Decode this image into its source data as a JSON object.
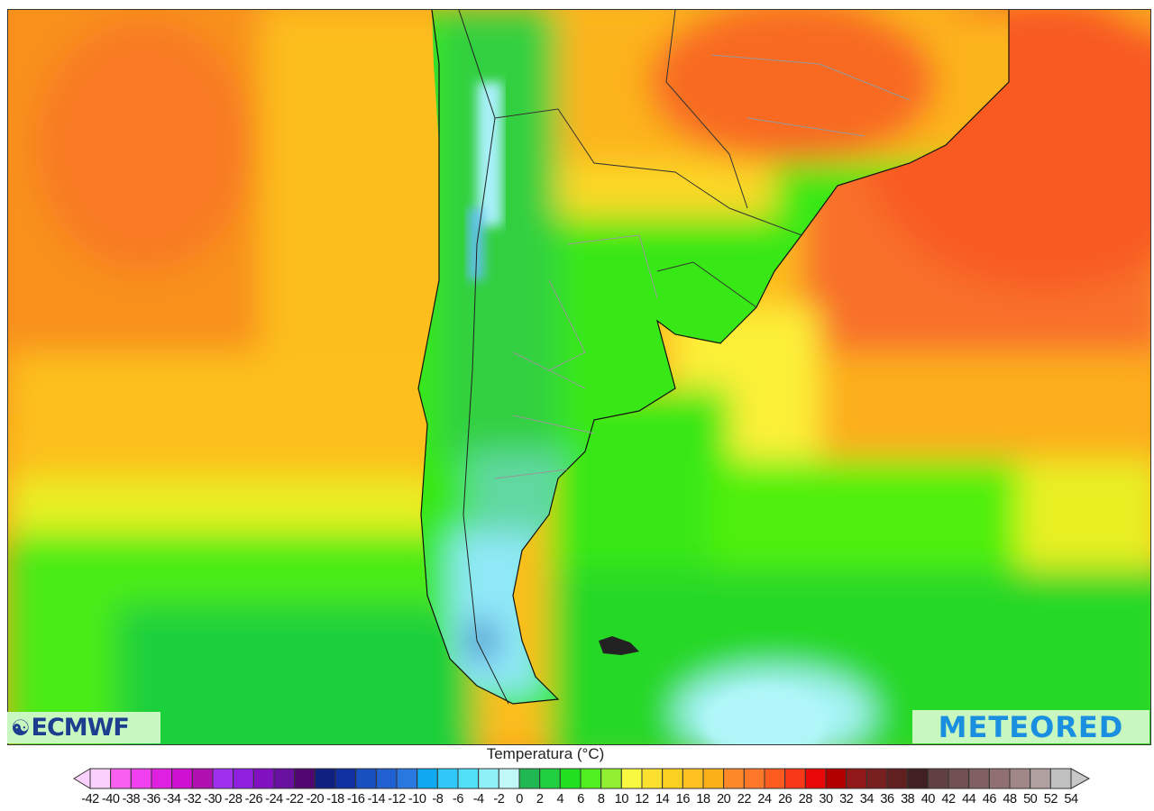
{
  "map": {
    "variable": "Temperatura (°C)",
    "region": "South America southern cone",
    "logos": {
      "left": "ECMWF",
      "right": "METEORED"
    }
  },
  "legend": {
    "title": "Temperatura (°C)",
    "labels": [
      "-42",
      "-40",
      "-38",
      "-36",
      "-34",
      "-32",
      "-30",
      "-28",
      "-26",
      "-24",
      "-22",
      "-20",
      "-18",
      "-16",
      "-14",
      "-12",
      "-10",
      "-8",
      "-6",
      "-4",
      "-2",
      "0",
      "2",
      "4",
      "6",
      "8",
      "10",
      "12",
      "14",
      "16",
      "18",
      "20",
      "22",
      "24",
      "26",
      "28",
      "30",
      "32",
      "34",
      "36",
      "38",
      "40",
      "42",
      "44",
      "46",
      "48",
      "50",
      "52",
      "54"
    ],
    "colors": [
      "#fcd0fc",
      "#f860f0",
      "#f040f0",
      "#e020e0",
      "#d010d0",
      "#b010b0",
      "#a030f0",
      "#9020e0",
      "#8010c0",
      "#6810a0",
      "#500870",
      "#102080",
      "#1030a0",
      "#1850c0",
      "#2060d0",
      "#2878e0",
      "#10a8f0",
      "#30c8f8",
      "#50e0f8",
      "#90f0f8",
      "#c0f8f8",
      "#20b850",
      "#20d040",
      "#20e020",
      "#50f020",
      "#90f030",
      "#f8f840",
      "#fce030",
      "#fcd020",
      "#fcc020",
      "#fcb018",
      "#fc8828",
      "#fc7828",
      "#fc5c20",
      "#f83818",
      "#e80808",
      "#b00000",
      "#901818",
      "#782020",
      "#602020",
      "#402020",
      "#604040",
      "#705050",
      "#806060",
      "#907070",
      "#a08888",
      "#b0a0a0",
      "#c0c0c0"
    ],
    "under_color": "#fcd0fc",
    "over_color": "#c8c8c8"
  }
}
